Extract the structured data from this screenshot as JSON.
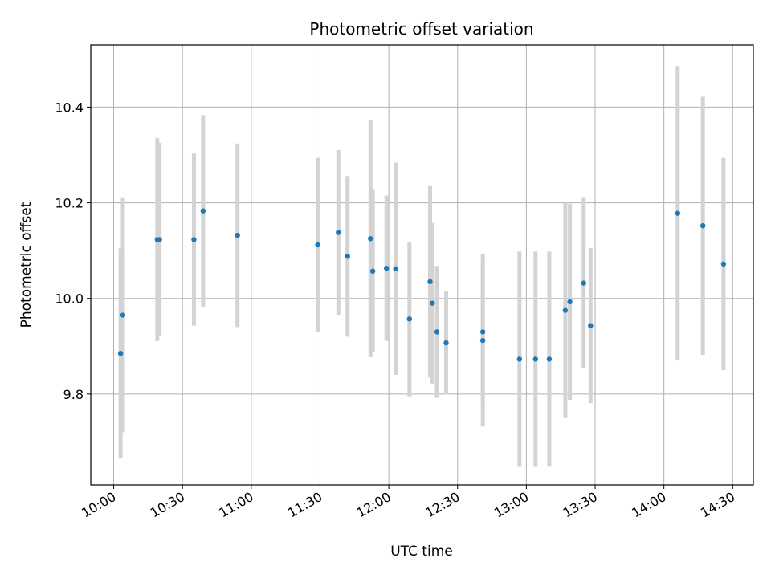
{
  "chart_data": {
    "type": "scatter",
    "title": "Photometric offset variation",
    "xlabel": "UTC time",
    "ylabel": "Photometric offset",
    "x_ticks": [
      "10:00",
      "10:30",
      "11:00",
      "11:30",
      "12:00",
      "12:30",
      "13:00",
      "13:30",
      "14:00",
      "14:30"
    ],
    "y_ticks": [
      "9.8",
      "10.0",
      "10.2",
      "10.4"
    ],
    "xlim": [
      "09:50",
      "14:39"
    ],
    "ylim": [
      9.61,
      10.53
    ],
    "grid": true,
    "marker_color": "#1f77b4",
    "errorbar_color": "#d3d3d3",
    "points": [
      {
        "x": "10:03",
        "y": 9.885,
        "yerr": 0.22
      },
      {
        "x": "10:04",
        "y": 9.965,
        "yerr": 0.245
      },
      {
        "x": "10:19",
        "y": 10.123,
        "yerr": 0.212
      },
      {
        "x": "10:20",
        "y": 10.123,
        "yerr": 0.202
      },
      {
        "x": "10:35",
        "y": 10.123,
        "yerr": 0.18
      },
      {
        "x": "10:39",
        "y": 10.183,
        "yerr": 0.2
      },
      {
        "x": "10:54",
        "y": 10.132,
        "yerr": 0.192
      },
      {
        "x": "11:29",
        "y": 10.112,
        "yerr": 0.182
      },
      {
        "x": "11:38",
        "y": 10.138,
        "yerr": 0.172
      },
      {
        "x": "11:42",
        "y": 10.088,
        "yerr": 0.168
      },
      {
        "x": "11:52",
        "y": 10.125,
        "yerr": 0.248
      },
      {
        "x": "11:53",
        "y": 10.057,
        "yerr": 0.17
      },
      {
        "x": "11:59",
        "y": 10.063,
        "yerr": 0.152
      },
      {
        "x": "12:03",
        "y": 10.062,
        "yerr": 0.222
      },
      {
        "x": "12:09",
        "y": 9.957,
        "yerr": 0.162
      },
      {
        "x": "12:18",
        "y": 10.035,
        "yerr": 0.2
      },
      {
        "x": "12:19",
        "y": 9.99,
        "yerr": 0.168
      },
      {
        "x": "12:21",
        "y": 9.93,
        "yerr": 0.138
      },
      {
        "x": "12:25",
        "y": 9.907,
        "yerr": 0.108
      },
      {
        "x": "12:41",
        "y": 9.93,
        "yerr": 0.148
      },
      {
        "x": "12:41",
        "y": 9.912,
        "yerr": 0.18
      },
      {
        "x": "12:57",
        "y": 9.873,
        "yerr": 0.225
      },
      {
        "x": "13:04",
        "y": 9.873,
        "yerr": 0.225
      },
      {
        "x": "13:10",
        "y": 9.873,
        "yerr": 0.225
      },
      {
        "x": "13:17",
        "y": 9.975,
        "yerr": 0.225
      },
      {
        "x": "13:19",
        "y": 9.993,
        "yerr": 0.205
      },
      {
        "x": "13:25",
        "y": 10.032,
        "yerr": 0.178
      },
      {
        "x": "13:28",
        "y": 9.943,
        "yerr": 0.162
      },
      {
        "x": "14:06",
        "y": 10.178,
        "yerr": 0.308
      },
      {
        "x": "14:17",
        "y": 10.152,
        "yerr": 0.27
      },
      {
        "x": "14:26",
        "y": 10.072,
        "yerr": 0.222
      }
    ]
  }
}
